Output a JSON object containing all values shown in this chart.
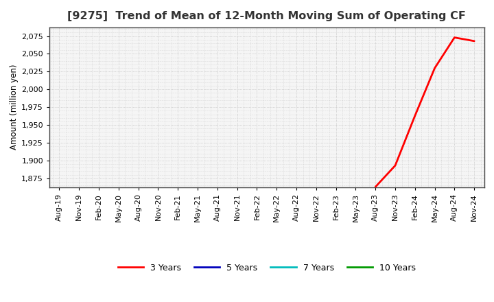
{
  "title": "[9275]  Trend of Mean of 12-Month Moving Sum of Operating CF",
  "ylabel": "Amount (million yen)",
  "background_color": "#ffffff",
  "plot_bg_color": "#f5f5f5",
  "grid_color": "#999999",
  "ylim": [
    1862.5,
    2087.5
  ],
  "yticks": [
    1875,
    1900,
    1925,
    1950,
    1975,
    2000,
    2025,
    2050,
    2075
  ],
  "line_3y_color": "#ff0000",
  "line_5y_color": "#0000bb",
  "line_7y_color": "#00bbbb",
  "line_10y_color": "#009900",
  "x_labels": [
    "Aug-19",
    "Nov-19",
    "Feb-20",
    "May-20",
    "Aug-20",
    "Nov-20",
    "Feb-21",
    "May-21",
    "Aug-21",
    "Nov-21",
    "Feb-22",
    "May-22",
    "Aug-22",
    "Nov-22",
    "Feb-23",
    "May-23",
    "Aug-23",
    "Nov-23",
    "Feb-24",
    "May-24",
    "Aug-24",
    "Nov-24"
  ],
  "data_3y_x": [
    16,
    17,
    18,
    19,
    20,
    21
  ],
  "data_3y_y": [
    1863.0,
    1893.0,
    1963.0,
    2030.0,
    2073.0,
    2068.0
  ],
  "legend_labels": [
    "3 Years",
    "5 Years",
    "7 Years",
    "10 Years"
  ],
  "legend_colors": [
    "#ff0000",
    "#0000bb",
    "#00bbbb",
    "#009900"
  ],
  "title_fontsize": 11.5,
  "tick_fontsize": 8,
  "ylabel_fontsize": 8.5,
  "legend_fontsize": 9
}
